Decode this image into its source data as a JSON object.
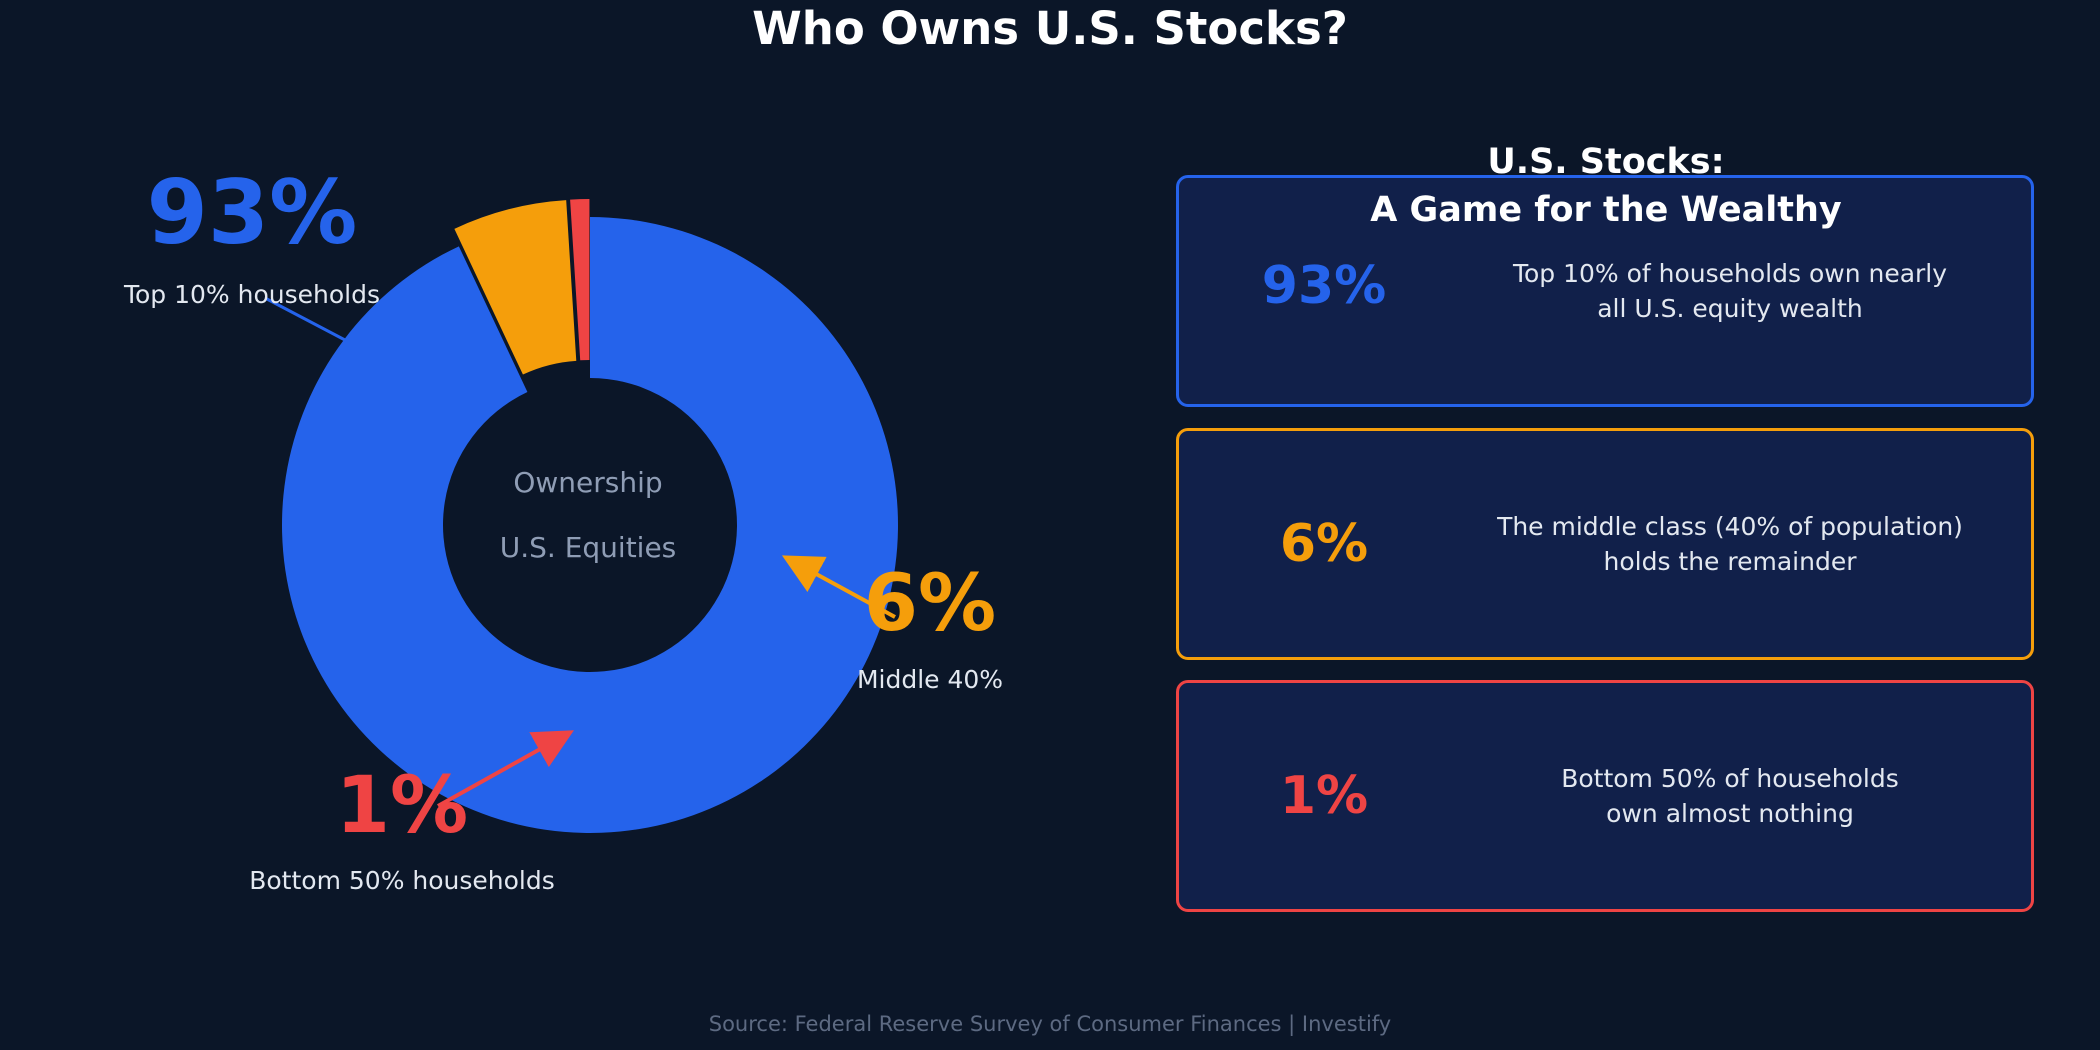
{
  "title": "Who Owns U.S. Stocks?",
  "chart_data": {
    "type": "pie",
    "donut": true,
    "title": "Who Owns U.S. Stocks?",
    "center_label": [
      "Ownership",
      "U.S. Equities"
    ],
    "series": [
      {
        "name": "Top 10% households",
        "value": 93,
        "display": "93%",
        "color": "#2563eb",
        "exploded": false
      },
      {
        "name": "Middle 40%",
        "value": 6,
        "display": "6%",
        "color": "#f59e0b",
        "exploded": true
      },
      {
        "name": "Bottom 50% households",
        "value": 1,
        "display": "1%",
        "color": "#ef4444",
        "exploded": true
      }
    ]
  },
  "panel": {
    "heading_line1": "U.S. Stocks:",
    "heading_line2": "A Game for the Wealthy",
    "cards": [
      {
        "value": "93%",
        "description": "Top 10% of households own nearly\nall U.S. equity wealth",
        "color": "#2563eb"
      },
      {
        "value": "6%",
        "description": "The middle class (40% of population)\nholds the remainder",
        "color": "#f59e0b"
      },
      {
        "value": "1%",
        "description": "Bottom 50% of households\nown almost nothing",
        "color": "#ef4444"
      }
    ]
  },
  "source": "Source: Federal Reserve Survey of Consumer Finances  |  Investify"
}
